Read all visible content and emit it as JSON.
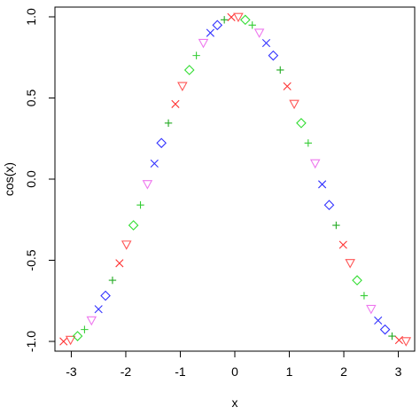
{
  "chart_data": {
    "type": "scatter",
    "xlabel": "x",
    "ylabel": "cos(x)",
    "xlim": [
      -3.3,
      3.3
    ],
    "ylim": [
      -1.06,
      1.06
    ],
    "xticks": [
      -3,
      -2,
      -1,
      0,
      1,
      2,
      3
    ],
    "xtick_labels": [
      "-3",
      "-2",
      "-1",
      "0",
      "1",
      "2",
      "3"
    ],
    "yticks": [
      -1.0,
      -0.5,
      0.0,
      0.5,
      1.0
    ],
    "ytick_labels": [
      "-1.0",
      "-0.5",
      "0.0",
      "0.5",
      "1.0"
    ],
    "grid": false,
    "legend": "none",
    "pch_cycle": [
      "x",
      "triangle-down",
      "diamond",
      "plus",
      "triangle-down",
      "cross",
      "diamond",
      "plus"
    ],
    "color_cycle": [
      "#ff3333",
      "#ff5555",
      "#33dd33",
      "#33cc33",
      "#ee77ee",
      "#3333ff",
      "#3333ff",
      "#22aa22"
    ],
    "x": [
      -3.1416,
      -3.0134,
      -2.8851,
      -2.7569,
      -2.6287,
      -2.5005,
      -2.3722,
      -2.244,
      -2.1158,
      -1.9875,
      -1.8593,
      -1.7311,
      -1.6029,
      -1.4746,
      -1.3464,
      -1.2182,
      -1.0899,
      -0.9617,
      -0.8335,
      -0.7053,
      -0.577,
      -0.4488,
      -0.3206,
      -0.1923,
      -0.0641,
      0.0641,
      0.1923,
      0.3206,
      0.4488,
      0.577,
      0.7053,
      0.8335,
      0.9617,
      1.0899,
      1.2182,
      1.3464,
      1.4746,
      1.6029,
      1.7311,
      1.8593,
      1.9875,
      2.1158,
      2.244,
      2.3722,
      2.5005,
      2.6287,
      2.7569,
      2.8851,
      3.0134,
      3.1416
    ],
    "y": [
      -1.0,
      -0.9918,
      -0.9673,
      -0.9268,
      -0.8713,
      -0.8014,
      -0.7183,
      -0.6235,
      -0.5183,
      -0.4047,
      -0.2845,
      -0.1596,
      -0.0321,
      0.096,
      0.2225,
      0.3453,
      0.4625,
      0.5721,
      0.6723,
      0.7615,
      0.8382,
      0.901,
      0.949,
      0.9816,
      0.9979,
      0.9979,
      0.9816,
      0.949,
      0.901,
      0.8382,
      0.7615,
      0.6723,
      0.5721,
      0.4625,
      0.3453,
      0.2225,
      0.096,
      -0.0321,
      -0.1596,
      -0.2845,
      -0.4047,
      -0.5183,
      -0.6235,
      -0.7183,
      -0.8014,
      -0.8713,
      -0.9268,
      -0.9673,
      -0.9918,
      -1.0
    ]
  }
}
